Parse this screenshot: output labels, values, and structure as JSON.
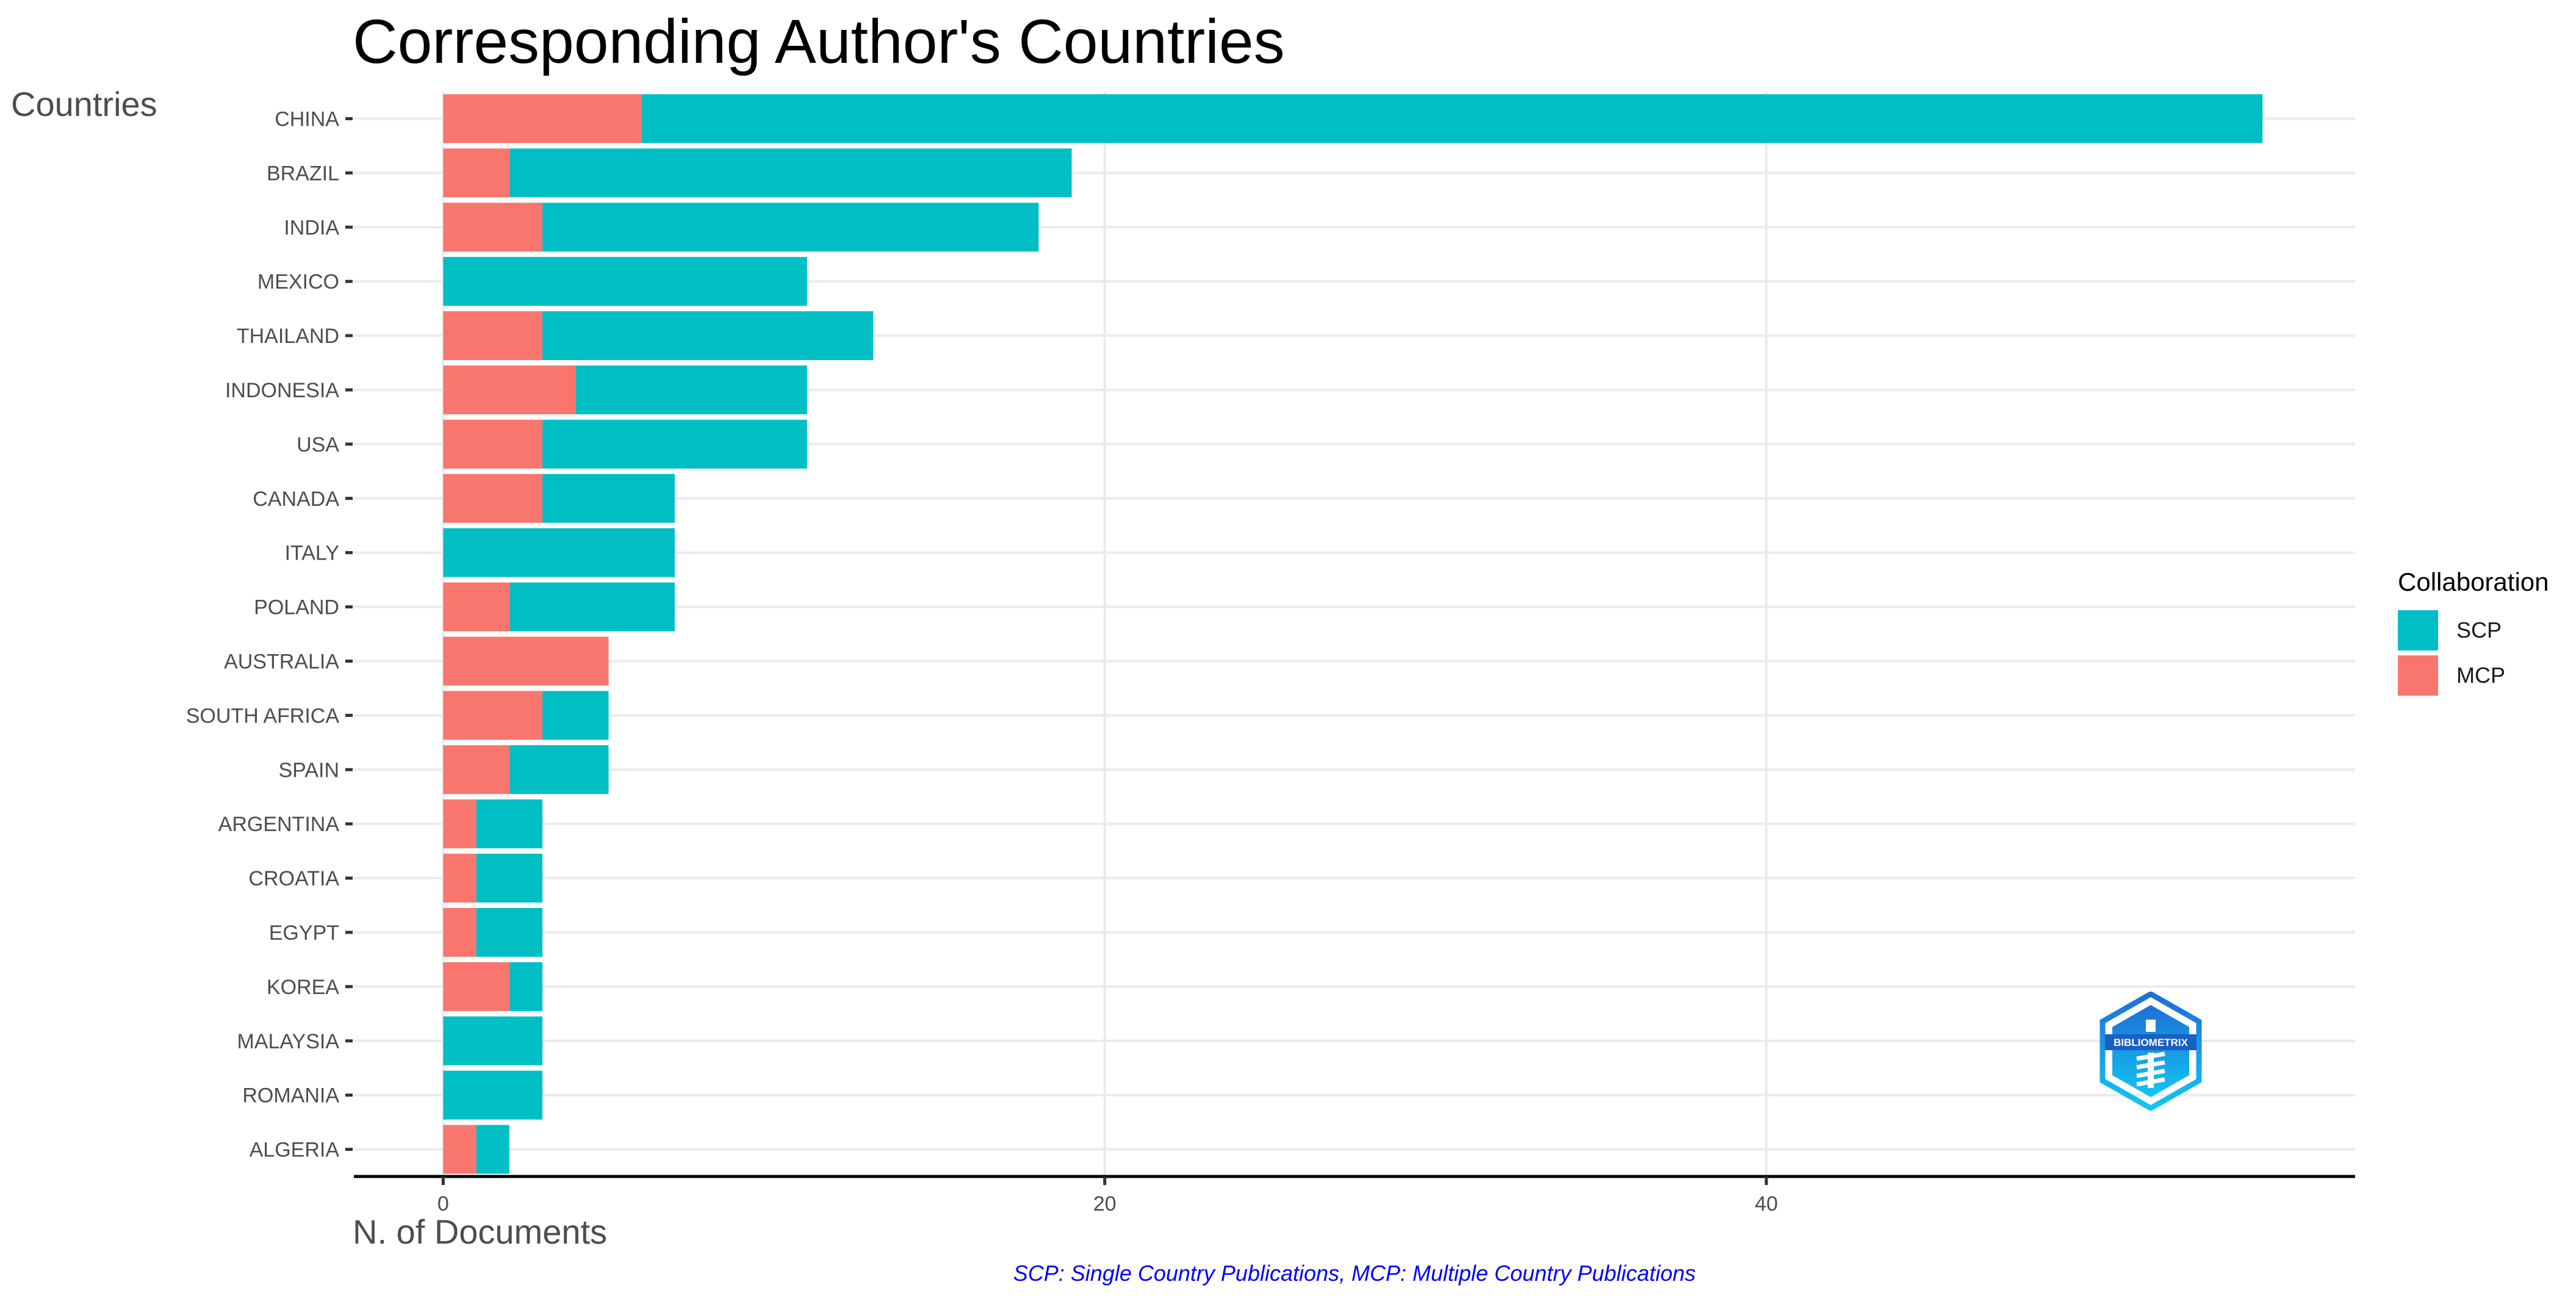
{
  "chart_data": {
    "type": "bar",
    "orientation": "horizontal",
    "stacked": true,
    "title": "Corresponding Author's Countries",
    "xlabel": "N. of Documents",
    "ylabel": "Countries",
    "caption": "SCP: Single Country Publications, MCP: Multiple Country Publications",
    "categories": [
      "CHINA",
      "BRAZIL",
      "INDIA",
      "MEXICO",
      "THAILAND",
      "INDONESIA",
      "USA",
      "CANADA",
      "ITALY",
      "POLAND",
      "AUSTRALIA",
      "SOUTH AFRICA",
      "SPAIN",
      "ARGENTINA",
      "CROATIA",
      "EGYPT",
      "KOREA",
      "MALAYSIA",
      "ROMANIA",
      "ALGERIA"
    ],
    "series": [
      {
        "name": "MCP",
        "color": "#F8766D",
        "values": [
          6,
          2,
          3,
          0,
          3,
          4,
          3,
          3,
          0,
          2,
          5,
          3,
          2,
          1,
          1,
          1,
          2,
          0,
          0,
          1
        ]
      },
      {
        "name": "SCP",
        "color": "#00BFC4",
        "values": [
          49,
          17,
          15,
          11,
          10,
          7,
          8,
          4,
          7,
          5,
          0,
          2,
          3,
          2,
          2,
          2,
          1,
          3,
          3,
          1
        ]
      }
    ],
    "xticks": [
      0,
      20,
      40
    ],
    "xlim": [
      -2.7,
      57.8
    ],
    "grid": true,
    "legend": {
      "title": "Collaboration",
      "position": "right",
      "entries": [
        {
          "label": "SCP",
          "color": "#00BFC4"
        },
        {
          "label": "MCP",
          "color": "#F8766D"
        }
      ]
    }
  },
  "logo": {
    "text": "BIBLIOMETRIX"
  }
}
